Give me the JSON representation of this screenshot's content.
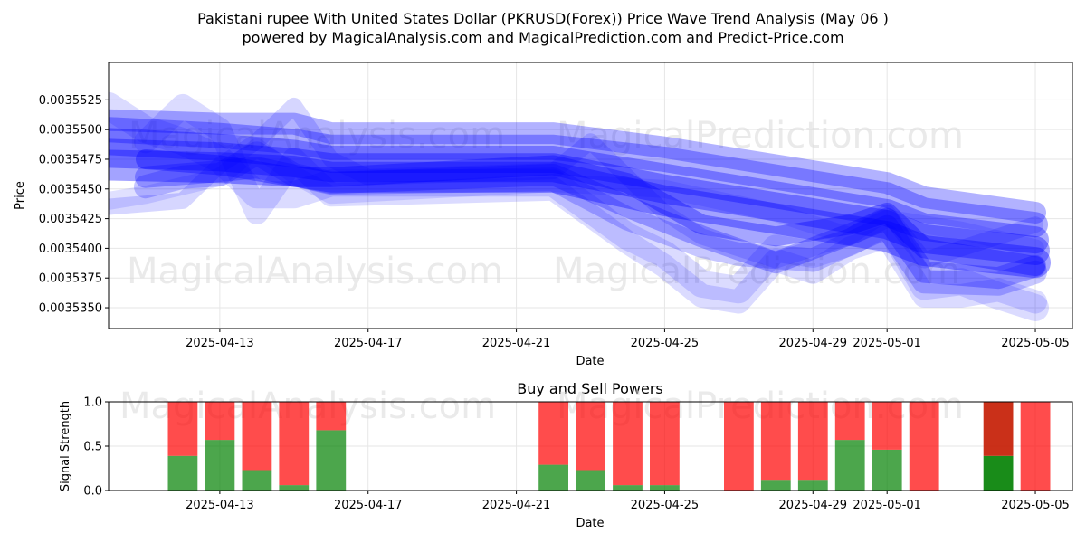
{
  "title_line1": "Pakistani rupee With United States Dollar (PKRUSD(Forex)) Price Wave Trend Analysis (May 06 )",
  "title_line2": "powered by MagicalAnalysis.com and MagicalPrediction.com and Predict-Price.com",
  "watermarks": [
    "MagicalAnalysis.com",
    "MagicalPrediction.com"
  ],
  "colors": {
    "wave": "#0000ff",
    "buy": "#008000",
    "sell": "#ff0000",
    "grid": "#e6e6e6",
    "watermark": "#dcdcdc"
  },
  "chart_data": [
    {
      "type": "line",
      "title": "",
      "xlabel": "Date",
      "ylabel": "Price",
      "grid": true,
      "xlim": [
        "2025-04-10",
        "2025-05-06"
      ],
      "ylim": [
        0.00353325,
        0.00355565
      ],
      "xticks": [
        "2025-04-13",
        "2025-04-17",
        "2025-04-21",
        "2025-04-25",
        "2025-04-29",
        "2025-05-01",
        "2025-05-05"
      ],
      "yticks": [
        0.003535,
        0.0035375,
        0.00354,
        0.0035425,
        0.003545,
        0.0035475,
        0.00355,
        0.0035525
      ],
      "ytick_labels": [
        "0.0035350",
        "0.0035375",
        "0.0035400",
        "0.0035425",
        "0.0035450",
        "0.0035475",
        "0.0035500",
        "0.0035525"
      ],
      "series": [
        {
          "values": [
            [
              "2025-04-10",
              0.0035508
            ],
            [
              "2025-04-13",
              0.0035505
            ],
            [
              "2025-04-15",
              0.0035505
            ],
            [
              "2025-04-16",
              0.0035497
            ],
            [
              "2025-04-22",
              0.0035497
            ],
            [
              "2025-04-25",
              0.0035485
            ],
            [
              "2025-04-29",
              0.0035465
            ],
            [
              "2025-05-01",
              0.0035455
            ],
            [
              "2025-05-02",
              0.0035443
            ],
            [
              "2025-05-05",
              0.003543
            ]
          ]
        },
        {
          "values": [
            [
              "2025-04-10",
              0.00355
            ],
            [
              "2025-04-13",
              0.0035495
            ],
            [
              "2025-04-15",
              0.003549
            ],
            [
              "2025-04-16",
              0.0035485
            ],
            [
              "2025-04-22",
              0.0035485
            ],
            [
              "2025-04-25",
              0.0035475
            ],
            [
              "2025-04-29",
              0.0035455
            ],
            [
              "2025-05-01",
              0.0035445
            ],
            [
              "2025-05-02",
              0.0035432
            ],
            [
              "2025-05-05",
              0.003542
            ]
          ]
        },
        {
          "values": [
            [
              "2025-04-10",
              0.003549
            ],
            [
              "2025-04-13",
              0.0035485
            ],
            [
              "2025-04-15",
              0.003548
            ],
            [
              "2025-04-16",
              0.0035475
            ],
            [
              "2025-04-22",
              0.0035475
            ],
            [
              "2025-04-25",
              0.003546
            ],
            [
              "2025-04-29",
              0.003544
            ],
            [
              "2025-05-01",
              0.003543
            ],
            [
              "2025-05-02",
              0.0035418
            ],
            [
              "2025-05-05",
              0.0035407
            ]
          ]
        },
        {
          "values": [
            [
              "2025-04-10",
              0.003548
            ],
            [
              "2025-04-13",
              0.0035477
            ],
            [
              "2025-04-15",
              0.0035472
            ],
            [
              "2025-04-16",
              0.0035468
            ],
            [
              "2025-04-22",
              0.0035468
            ],
            [
              "2025-04-25",
              0.003545
            ],
            [
              "2025-04-29",
              0.003543
            ],
            [
              "2025-05-01",
              0.003542
            ],
            [
              "2025-05-02",
              0.0035408
            ],
            [
              "2025-05-05",
              0.0035398
            ]
          ]
        },
        {
          "values": [
            [
              "2025-04-10",
              0.003547
            ],
            [
              "2025-04-13",
              0.0035468
            ],
            [
              "2025-04-15",
              0.0035465
            ],
            [
              "2025-04-16",
              0.003546
            ],
            [
              "2025-04-22",
              0.003546
            ],
            [
              "2025-04-25",
              0.003544
            ],
            [
              "2025-04-29",
              0.003542
            ],
            [
              "2025-05-01",
              0.003541
            ],
            [
              "2025-05-02",
              0.0035398
            ],
            [
              "2025-05-05",
              0.0035388
            ]
          ]
        },
        {
          "values": [
            [
              "2025-04-11",
              0.0035475
            ],
            [
              "2025-04-13",
              0.003547
            ],
            [
              "2025-04-15",
              0.003546
            ],
            [
              "2025-04-16",
              0.003546
            ],
            [
              "2025-04-22",
              0.003547
            ],
            [
              "2025-04-24",
              0.0035455
            ],
            [
              "2025-04-26",
              0.003542
            ],
            [
              "2025-04-28",
              0.003541
            ],
            [
              "2025-04-30",
              0.003542
            ],
            [
              "2025-05-01",
              0.003543
            ],
            [
              "2025-05-02",
              0.00354
            ],
            [
              "2025-05-05",
              0.0035385
            ]
          ]
        },
        {
          "values": [
            [
              "2025-04-11",
              0.003546
            ],
            [
              "2025-04-13",
              0.0035465
            ],
            [
              "2025-04-14",
              0.0035468
            ],
            [
              "2025-04-16",
              0.0035455
            ],
            [
              "2025-04-22",
              0.0035462
            ],
            [
              "2025-04-24",
              0.0035435
            ],
            [
              "2025-04-26",
              0.003541
            ],
            [
              "2025-04-28",
              0.0035388
            ],
            [
              "2025-04-30",
              0.0035412
            ],
            [
              "2025-05-01",
              0.0035425
            ],
            [
              "2025-05-02",
              0.003538
            ],
            [
              "2025-05-04",
              0.0035375
            ],
            [
              "2025-05-05",
              0.0035385
            ]
          ]
        },
        {
          "values": [
            [
              "2025-04-11",
              0.0035452
            ],
            [
              "2025-04-12",
              0.003546
            ],
            [
              "2025-04-13",
              0.0035462
            ],
            [
              "2025-04-14",
              0.003548
            ],
            [
              "2025-04-15",
              0.0035462
            ],
            [
              "2025-04-16",
              0.0035455
            ],
            [
              "2025-04-22",
              0.0035458
            ],
            [
              "2025-04-24",
              0.0035425
            ],
            [
              "2025-04-26",
              0.0035402
            ],
            [
              "2025-04-27",
              0.0035395
            ],
            [
              "2025-04-29",
              0.003539
            ],
            [
              "2025-05-01",
              0.0035418
            ],
            [
              "2025-05-02",
              0.0035372
            ],
            [
              "2025-05-04",
              0.003537
            ],
            [
              "2025-05-05",
              0.003538
            ]
          ]
        },
        {
          "values": [
            [
              "2025-04-10",
              0.003552
            ],
            [
              "2025-04-11",
              0.00355
            ],
            [
              "2025-04-12",
              0.003549
            ],
            [
              "2025-04-13",
              0.0035475
            ],
            [
              "2025-04-14",
              0.0035445
            ],
            [
              "2025-04-15",
              0.0035445
            ],
            [
              "2025-04-16",
              0.0035455
            ],
            [
              "2025-04-22",
              0.0035455
            ],
            [
              "2025-04-24",
              0.003541
            ],
            [
              "2025-04-25",
              0.0035395
            ],
            [
              "2025-04-26",
              0.003537
            ],
            [
              "2025-04-27",
              0.0035365
            ],
            [
              "2025-04-28",
              0.00354
            ],
            [
              "2025-04-29",
              0.0035395
            ],
            [
              "2025-04-30",
              0.0035405
            ],
            [
              "2025-05-01",
              0.0035422
            ],
            [
              "2025-05-02",
              0.0035368
            ],
            [
              "2025-05-03",
              0.0035372
            ],
            [
              "2025-05-04",
              0.003536
            ],
            [
              "2025-05-05",
              0.003535
            ]
          ]
        },
        {
          "values": [
            [
              "2025-04-11",
              0.003549
            ],
            [
              "2025-04-12",
              0.003552
            ],
            [
              "2025-04-13",
              0.00355
            ],
            [
              "2025-04-14",
              0.003543
            ],
            [
              "2025-04-15",
              0.0035475
            ],
            [
              "2025-04-16",
              0.0035445
            ],
            [
              "2025-04-22",
              0.003545
            ],
            [
              "2025-04-24",
              0.0035405
            ],
            [
              "2025-04-25",
              0.0035385
            ],
            [
              "2025-04-26",
              0.003536
            ],
            [
              "2025-04-27",
              0.0035355
            ],
            [
              "2025-04-28",
              0.003539
            ],
            [
              "2025-04-29",
              0.003538
            ],
            [
              "2025-04-30",
              0.00354
            ],
            [
              "2025-05-01",
              0.003541
            ],
            [
              "2025-05-02",
              0.003536
            ],
            [
              "2025-05-03",
              0.003536
            ],
            [
              "2025-05-04",
              0.0035365
            ],
            [
              "2025-05-05",
              0.0035355
            ]
          ]
        },
        {
          "values": [
            [
              "2025-04-10",
              0.0035435
            ],
            [
              "2025-04-12",
              0.003544
            ],
            [
              "2025-04-13",
              0.003547
            ],
            [
              "2025-04-14",
              0.003549
            ],
            [
              "2025-04-15",
              0.003552
            ],
            [
              "2025-04-16",
              0.0035475
            ],
            [
              "2025-04-17",
              0.003546
            ],
            [
              "2025-04-22",
              0.0035465
            ],
            [
              "2025-04-23",
              0.003549
            ],
            [
              "2025-04-24",
              0.003546
            ],
            [
              "2025-04-25",
              0.003543
            ],
            [
              "2025-04-26",
              0.003541
            ],
            [
              "2025-04-28",
              0.003539
            ],
            [
              "2025-04-30",
              0.003541
            ],
            [
              "2025-05-01",
              0.003543
            ],
            [
              "2025-05-02",
              0.003539
            ],
            [
              "2025-05-04",
              0.003541
            ],
            [
              "2025-05-05",
              0.003542
            ]
          ]
        },
        {
          "values": [
            [
              "2025-04-10",
              0.003544
            ],
            [
              "2025-04-11",
              0.0035445
            ],
            [
              "2025-04-13",
              0.003546
            ],
            [
              "2025-04-14",
              0.0035485
            ],
            [
              "2025-04-15",
              0.0035462
            ],
            [
              "2025-04-16",
              0.0035445
            ],
            [
              "2025-04-22",
              0.0035455
            ],
            [
              "2025-04-25",
              0.003545
            ],
            [
              "2025-04-28",
              0.003543
            ],
            [
              "2025-04-30",
              0.003541
            ],
            [
              "2025-05-01",
              0.0035425
            ],
            [
              "2025-05-03",
              0.0035415
            ],
            [
              "2025-05-05",
              0.00354
            ]
          ]
        }
      ]
    },
    {
      "type": "bar",
      "title": "Buy and Sell Powers",
      "xlabel": "Date",
      "ylabel": "Signal Strength",
      "grid": true,
      "xlim": [
        "2025-04-10",
        "2025-05-06"
      ],
      "ylim": [
        0,
        1.0
      ],
      "xticks": [
        "2025-04-13",
        "2025-04-17",
        "2025-04-21",
        "2025-04-25",
        "2025-04-29",
        "2025-05-01",
        "2025-05-05"
      ],
      "yticks": [
        0.0,
        0.5,
        1.0
      ],
      "ytick_labels": [
        "0.0",
        "0.5",
        "1.0"
      ],
      "dates": [
        "2025-04-12",
        "2025-04-13",
        "2025-04-14",
        "2025-04-15",
        "2025-04-16",
        "2025-04-22",
        "2025-04-23",
        "2025-04-24",
        "2025-04-25",
        "2025-04-27",
        "2025-04-28",
        "2025-04-29",
        "2025-04-30",
        "2025-05-01",
        "2025-05-02",
        "2025-05-04",
        "2025-05-05"
      ],
      "series": [
        {
          "values": [
            0.39,
            0.57,
            0.23,
            0.06,
            0.68,
            0.29,
            0.23,
            0.06,
            0.06,
            0.0,
            0.12,
            0.12,
            0.57,
            0.46,
            0.0,
            0.39,
            0.0
          ]
        },
        {
          "values": [
            0.61,
            0.43,
            0.77,
            0.94,
            0.32,
            0.71,
            0.77,
            0.94,
            0.94,
            1.0,
            0.88,
            0.88,
            0.43,
            0.54,
            1.0,
            0.61,
            1.0
          ]
        }
      ],
      "highlight_date": "2025-05-04"
    }
  ]
}
